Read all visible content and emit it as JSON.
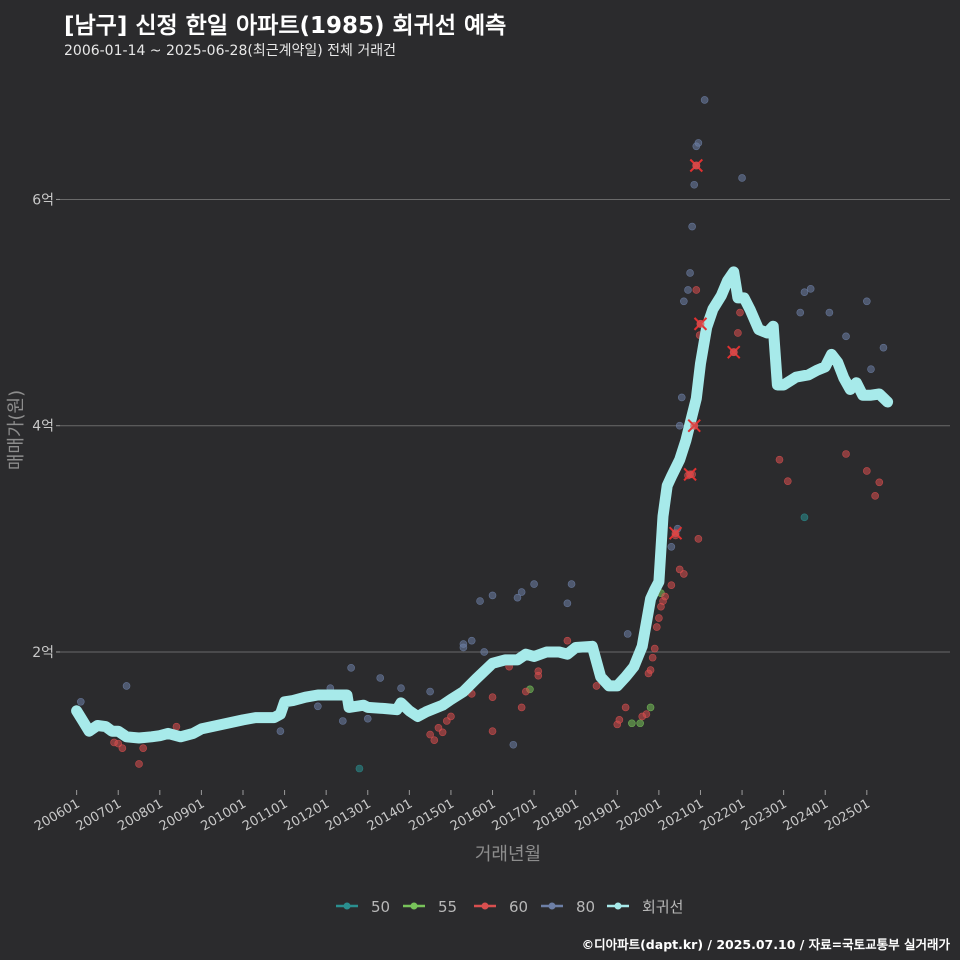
{
  "title": "[남구] 신정 한일 아파트(1985) 회귀선 예측",
  "subtitle": "2006-01-14 ~ 2025-06-28(최근계약일) 전체 거래건",
  "caption": "©디아파트(dapt.kr) / 2025.07.10 / 자료=국토교통부 실거래가",
  "chart_data": {
    "type": "scatter",
    "xlabel": "거래년월",
    "ylabel": "매매가(원)",
    "xlim": [
      2005.6,
      2027.0
    ],
    "ylim": [
      0.78,
      7.1
    ],
    "x_ticks": [
      {
        "label": "200601",
        "value": 2006
      },
      {
        "label": "200701",
        "value": 2007
      },
      {
        "label": "200801",
        "value": 2008
      },
      {
        "label": "200901",
        "value": 2009
      },
      {
        "label": "201001",
        "value": 2010
      },
      {
        "label": "201101",
        "value": 2011
      },
      {
        "label": "201201",
        "value": 2012
      },
      {
        "label": "201301",
        "value": 2013
      },
      {
        "label": "201401",
        "value": 2014
      },
      {
        "label": "201501",
        "value": 2015
      },
      {
        "label": "201601",
        "value": 2016
      },
      {
        "label": "201701",
        "value": 2017
      },
      {
        "label": "201801",
        "value": 2018
      },
      {
        "label": "201901",
        "value": 2019
      },
      {
        "label": "202001",
        "value": 2020
      },
      {
        "label": "202101",
        "value": 2021
      },
      {
        "label": "202201",
        "value": 2022
      },
      {
        "label": "202301",
        "value": 2023
      },
      {
        "label": "202401",
        "value": 2024
      },
      {
        "label": "202501",
        "value": 2025
      }
    ],
    "y_ticks": [
      {
        "label": "2억",
        "value": 2
      },
      {
        "label": "4억",
        "value": 4
      },
      {
        "label": "6억",
        "value": 6
      }
    ],
    "grid": true,
    "legend_position": "bottom",
    "series": [
      {
        "name": "50",
        "color": "#2a8f8f",
        "points": [
          [
            2012.8,
            0.97
          ],
          [
            2023.5,
            3.19
          ]
        ]
      },
      {
        "name": "55",
        "color": "#78c35a",
        "points": [
          [
            2016.9,
            1.67
          ],
          [
            2019.35,
            1.37
          ],
          [
            2019.55,
            1.37
          ],
          [
            2019.8,
            1.51
          ],
          [
            2020.05,
            2.52
          ]
        ]
      },
      {
        "name": "60",
        "color": "#d94f4f",
        "points": [
          [
            2006.9,
            1.2
          ],
          [
            2007.0,
            1.19
          ],
          [
            2007.1,
            1.15
          ],
          [
            2007.5,
            1.01
          ],
          [
            2007.6,
            1.15
          ],
          [
            2008.4,
            1.34
          ],
          [
            2014.5,
            1.27
          ],
          [
            2014.6,
            1.22
          ],
          [
            2014.7,
            1.33
          ],
          [
            2014.8,
            1.29
          ],
          [
            2014.9,
            1.39
          ],
          [
            2015.0,
            1.43
          ],
          [
            2015.5,
            1.63
          ],
          [
            2016.0,
            1.3
          ],
          [
            2016.0,
            1.6
          ],
          [
            2016.4,
            1.87
          ],
          [
            2016.7,
            1.51
          ],
          [
            2016.8,
            1.65
          ],
          [
            2017.1,
            1.79
          ],
          [
            2017.1,
            1.83
          ],
          [
            2017.8,
            2.1
          ],
          [
            2018.5,
            1.7
          ],
          [
            2019.0,
            1.36
          ],
          [
            2019.05,
            1.4
          ],
          [
            2019.2,
            1.51
          ],
          [
            2019.6,
            1.43
          ],
          [
            2019.7,
            1.45
          ],
          [
            2019.75,
            1.81
          ],
          [
            2019.8,
            1.84
          ],
          [
            2019.85,
            1.95
          ],
          [
            2019.9,
            2.03
          ],
          [
            2019.95,
            2.22
          ],
          [
            2020.0,
            2.3
          ],
          [
            2020.05,
            2.4
          ],
          [
            2020.1,
            2.45
          ],
          [
            2020.15,
            2.49
          ],
          [
            2020.3,
            2.59
          ],
          [
            2020.4,
            3.03
          ],
          [
            2020.5,
            2.73
          ],
          [
            2020.6,
            2.69
          ],
          [
            2020.7,
            3.56
          ],
          [
            2020.8,
            3.57
          ],
          [
            2020.85,
            4.0
          ],
          [
            2020.9,
            5.2
          ],
          [
            2020.95,
            3.0
          ],
          [
            2021.0,
            4.9
          ],
          [
            2020.98,
            4.8
          ],
          [
            2020.9,
            6.3
          ],
          [
            2021.8,
            4.65
          ],
          [
            2021.9,
            4.82
          ],
          [
            2021.95,
            5.0
          ],
          [
            2022.9,
            3.7
          ],
          [
            2023.1,
            3.51
          ],
          [
            2024.5,
            3.75
          ],
          [
            2025.0,
            3.6
          ],
          [
            2025.2,
            3.38
          ],
          [
            2025.3,
            3.5
          ]
        ]
      },
      {
        "name": "80",
        "color": "#6d7fa6",
        "points": [
          [
            2006.1,
            1.56
          ],
          [
            2007.2,
            1.7
          ],
          [
            2010.9,
            1.3
          ],
          [
            2011.8,
            1.52
          ],
          [
            2012.1,
            1.68
          ],
          [
            2012.4,
            1.39
          ],
          [
            2012.6,
            1.86
          ],
          [
            2013.0,
            1.41
          ],
          [
            2013.3,
            1.77
          ],
          [
            2013.8,
            1.68
          ],
          [
            2014.3,
            1.47
          ],
          [
            2014.5,
            1.65
          ],
          [
            2015.3,
            2.04
          ],
          [
            2015.3,
            2.07
          ],
          [
            2015.5,
            2.1
          ],
          [
            2015.7,
            2.45
          ],
          [
            2015.8,
            2.0
          ],
          [
            2016.0,
            2.5
          ],
          [
            2016.5,
            1.18
          ],
          [
            2016.6,
            2.48
          ],
          [
            2016.7,
            2.53
          ],
          [
            2017.0,
            2.6
          ],
          [
            2017.8,
            2.43
          ],
          [
            2017.9,
            2.6
          ],
          [
            2019.25,
            2.16
          ],
          [
            2020.3,
            2.93
          ],
          [
            2020.45,
            3.09
          ],
          [
            2020.5,
            4.0
          ],
          [
            2020.55,
            4.25
          ],
          [
            2020.6,
            5.1
          ],
          [
            2020.7,
            5.2
          ],
          [
            2020.75,
            5.35
          ],
          [
            2020.8,
            5.76
          ],
          [
            2020.85,
            6.13
          ],
          [
            2020.9,
            6.47
          ],
          [
            2020.95,
            6.5
          ],
          [
            2021.1,
            6.88
          ],
          [
            2022.0,
            6.19
          ],
          [
            2023.4,
            5.0
          ],
          [
            2023.5,
            5.18
          ],
          [
            2023.65,
            5.21
          ],
          [
            2024.1,
            5.0
          ],
          [
            2024.5,
            4.79
          ],
          [
            2025.0,
            5.1
          ],
          [
            2025.1,
            4.5
          ],
          [
            2025.4,
            4.69
          ]
        ]
      },
      {
        "name": "회귀선",
        "color": "#a7eaea",
        "points": [
          [
            2006.0,
            1.48
          ],
          [
            2006.15,
            1.39
          ],
          [
            2006.3,
            1.3
          ],
          [
            2006.5,
            1.35
          ],
          [
            2006.7,
            1.34
          ],
          [
            2006.85,
            1.3
          ],
          [
            2007.0,
            1.3
          ],
          [
            2007.2,
            1.25
          ],
          [
            2007.5,
            1.24
          ],
          [
            2007.8,
            1.25
          ],
          [
            2008.0,
            1.26
          ],
          [
            2008.2,
            1.28
          ],
          [
            2008.5,
            1.25
          ],
          [
            2008.8,
            1.28
          ],
          [
            2009.0,
            1.32
          ],
          [
            2009.5,
            1.36
          ],
          [
            2010.0,
            1.4
          ],
          [
            2010.3,
            1.42
          ],
          [
            2010.6,
            1.42
          ],
          [
            2010.75,
            1.42
          ],
          [
            2010.9,
            1.45
          ],
          [
            2011.0,
            1.56
          ],
          [
            2011.2,
            1.57
          ],
          [
            2011.5,
            1.6
          ],
          [
            2011.8,
            1.62
          ],
          [
            2012.2,
            1.62
          ],
          [
            2012.5,
            1.62
          ],
          [
            2012.55,
            1.51
          ],
          [
            2012.9,
            1.53
          ],
          [
            2013.0,
            1.51
          ],
          [
            2013.4,
            1.5
          ],
          [
            2013.7,
            1.49
          ],
          [
            2013.8,
            1.55
          ],
          [
            2014.0,
            1.48
          ],
          [
            2014.2,
            1.43
          ],
          [
            2014.4,
            1.47
          ],
          [
            2014.6,
            1.5
          ],
          [
            2014.8,
            1.53
          ],
          [
            2015.0,
            1.58
          ],
          [
            2015.3,
            1.65
          ],
          [
            2015.6,
            1.76
          ],
          [
            2016.0,
            1.9
          ],
          [
            2016.3,
            1.93
          ],
          [
            2016.6,
            1.93
          ],
          [
            2016.8,
            1.98
          ],
          [
            2017.0,
            1.96
          ],
          [
            2017.3,
            2.0
          ],
          [
            2017.6,
            2.0
          ],
          [
            2017.8,
            1.98
          ],
          [
            2018.0,
            2.04
          ],
          [
            2018.4,
            2.05
          ],
          [
            2018.6,
            1.78
          ],
          [
            2018.8,
            1.7
          ],
          [
            2019.0,
            1.7
          ],
          [
            2019.2,
            1.78
          ],
          [
            2019.4,
            1.87
          ],
          [
            2019.6,
            2.05
          ],
          [
            2019.8,
            2.47
          ],
          [
            2019.9,
            2.55
          ],
          [
            2020.0,
            2.62
          ],
          [
            2020.1,
            3.2
          ],
          [
            2020.2,
            3.47
          ],
          [
            2020.3,
            3.55
          ],
          [
            2020.5,
            3.7
          ],
          [
            2020.65,
            3.87
          ],
          [
            2020.75,
            4.02
          ],
          [
            2020.9,
            4.24
          ],
          [
            2021.0,
            4.55
          ],
          [
            2021.15,
            4.87
          ],
          [
            2021.3,
            5.03
          ],
          [
            2021.5,
            5.15
          ],
          [
            2021.65,
            5.28
          ],
          [
            2021.8,
            5.36
          ],
          [
            2021.9,
            5.13
          ],
          [
            2022.05,
            5.13
          ],
          [
            2022.2,
            5.02
          ],
          [
            2022.4,
            4.85
          ],
          [
            2022.6,
            4.82
          ],
          [
            2022.75,
            4.88
          ],
          [
            2022.85,
            4.36
          ],
          [
            2023.0,
            4.36
          ],
          [
            2023.3,
            4.43
          ],
          [
            2023.6,
            4.45
          ],
          [
            2023.8,
            4.49
          ],
          [
            2024.0,
            4.52
          ],
          [
            2024.15,
            4.63
          ],
          [
            2024.3,
            4.56
          ],
          [
            2024.45,
            4.42
          ],
          [
            2024.6,
            4.32
          ],
          [
            2024.75,
            4.38
          ],
          [
            2024.9,
            4.27
          ],
          [
            2025.1,
            4.27
          ],
          [
            2025.3,
            4.28
          ],
          [
            2025.5,
            4.21
          ]
        ]
      }
    ],
    "cross_markers": [
      [
        2020.4,
        3.05
      ],
      [
        2020.75,
        3.57
      ],
      [
        2020.85,
        4.0
      ],
      [
        2020.9,
        6.3
      ],
      [
        2021.0,
        4.9
      ],
      [
        2021.8,
        4.65
      ]
    ]
  }
}
